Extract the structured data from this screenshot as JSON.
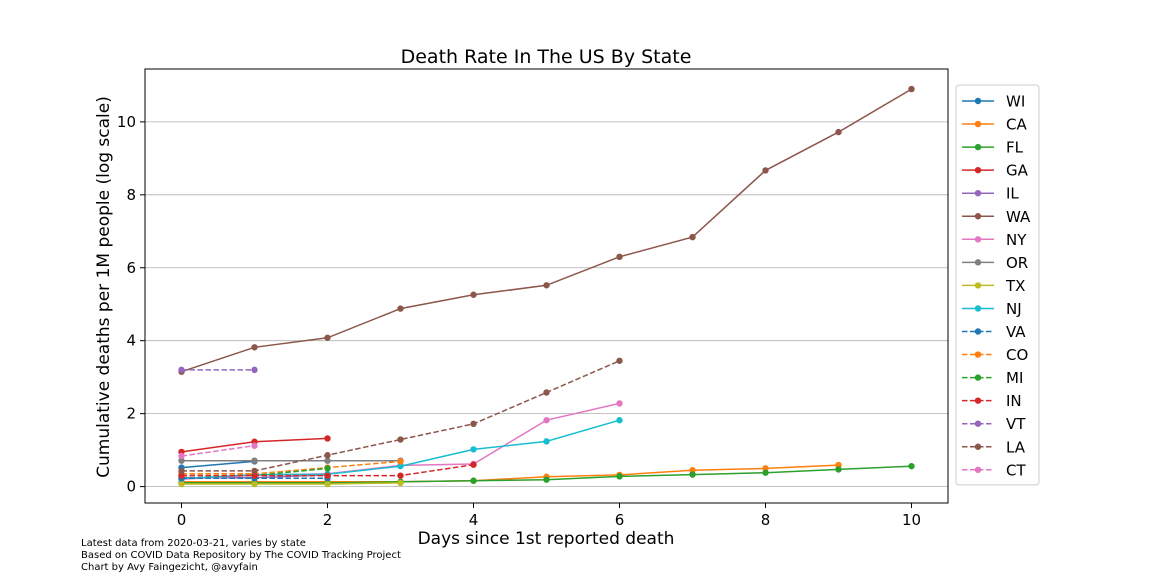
{
  "chart_data": {
    "type": "line",
    "title": "Death Rate In The US By State",
    "xlabel": "Days since 1st reported death",
    "ylabel": "Cumulative deaths per 1M people (log scale)",
    "xlim": [
      -0.5,
      10.5
    ],
    "ylim": [
      -0.45,
      11.45
    ],
    "xticks": [
      0,
      2,
      4,
      6,
      8,
      10
    ],
    "yticks": [
      0,
      2,
      4,
      6,
      8,
      10
    ],
    "grid": "horizontal",
    "legend_position": "right",
    "series": [
      {
        "name": "WI",
        "color": "#1f77b4",
        "style": "solid",
        "x": [
          0,
          1
        ],
        "y": [
          0.52,
          0.69
        ]
      },
      {
        "name": "CA",
        "color": "#ff7f0e",
        "style": "solid",
        "x": [
          0,
          1,
          2,
          3,
          4,
          5,
          6,
          7,
          8,
          9
        ],
        "y": [
          0.13,
          0.13,
          0.13,
          0.13,
          0.16,
          0.27,
          0.32,
          0.45,
          0.5,
          0.59
        ]
      },
      {
        "name": "FL",
        "color": "#2ca02c",
        "style": "solid",
        "x": [
          0,
          1,
          2,
          3,
          4,
          5,
          6,
          7,
          8,
          9,
          10
        ],
        "y": [
          0.1,
          0.1,
          0.1,
          0.13,
          0.16,
          0.19,
          0.28,
          0.33,
          0.38,
          0.47,
          0.56
        ]
      },
      {
        "name": "GA",
        "color": "#d62728",
        "style": "solid",
        "x": [
          0,
          1,
          2
        ],
        "y": [
          0.95,
          1.23,
          1.32
        ]
      },
      {
        "name": "IL",
        "color": "#9467bd",
        "style": "solid",
        "x": [
          0,
          1,
          2
        ],
        "y": [
          0.24,
          0.24,
          0.32
        ]
      },
      {
        "name": "WA",
        "color": "#8c564b",
        "style": "solid",
        "x": [
          0,
          1,
          2,
          3,
          4,
          5,
          6,
          7,
          8,
          9,
          10
        ],
        "y": [
          3.15,
          3.82,
          4.08,
          4.88,
          5.26,
          5.52,
          6.3,
          6.84,
          8.67,
          9.72,
          10.9
        ]
      },
      {
        "name": "NY",
        "color": "#e377c2",
        "style": "solid",
        "x": [
          0,
          1,
          2,
          3,
          4,
          5,
          6
        ],
        "y": [
          0.2,
          0.31,
          0.35,
          0.58,
          0.62,
          1.82,
          2.28
        ]
      },
      {
        "name": "OR",
        "color": "#7f7f7f",
        "style": "solid",
        "x": [
          0,
          1,
          2,
          3
        ],
        "y": [
          0.71,
          0.71,
          0.71,
          0.71
        ]
      },
      {
        "name": "TX",
        "color": "#bcbd22",
        "style": "solid",
        "x": [
          0,
          1,
          2,
          3
        ],
        "y": [
          0.07,
          0.07,
          0.07,
          0.1
        ]
      },
      {
        "name": "NJ",
        "color": "#17becf",
        "style": "solid",
        "x": [
          0,
          1,
          2,
          3,
          4,
          5,
          6
        ],
        "y": [
          0.22,
          0.33,
          0.34,
          0.56,
          1.02,
          1.24,
          1.82
        ]
      },
      {
        "name": "VA",
        "color": "#1f77b4",
        "style": "dashed",
        "x": [
          0,
          1,
          2
        ],
        "y": [
          0.23,
          0.23,
          0.23
        ]
      },
      {
        "name": "CO",
        "color": "#ff7f0e",
        "style": "dashed",
        "x": [
          0,
          1,
          2,
          3
        ],
        "y": [
          0.35,
          0.35,
          0.52,
          0.69
        ]
      },
      {
        "name": "MI",
        "color": "#2ca02c",
        "style": "dashed",
        "x": [
          0,
          1,
          2
        ],
        "y": [
          0.3,
          0.3,
          0.5
        ]
      },
      {
        "name": "IN",
        "color": "#d62728",
        "style": "dashed",
        "x": [
          0,
          1,
          2,
          3,
          4
        ],
        "y": [
          0.3,
          0.3,
          0.3,
          0.3,
          0.6
        ]
      },
      {
        "name": "VT",
        "color": "#9467bd",
        "style": "dashed",
        "x": [
          0,
          1
        ],
        "y": [
          3.2,
          3.2
        ]
      },
      {
        "name": "LA",
        "color": "#8c564b",
        "style": "dashed",
        "x": [
          0,
          1,
          2,
          3,
          4,
          5,
          6
        ],
        "y": [
          0.43,
          0.43,
          0.86,
          1.29,
          1.72,
          2.58,
          3.45
        ]
      },
      {
        "name": "CT",
        "color": "#e377c2",
        "style": "dashed",
        "x": [
          0,
          1
        ],
        "y": [
          0.84,
          1.12
        ]
      }
    ]
  },
  "footnotes": [
    "Latest data from 2020-03-21, varies by state",
    "Based on COVID Data Repository by The COVID Tracking Project",
    "Chart by Avy Faingezicht, @avyfain"
  ]
}
